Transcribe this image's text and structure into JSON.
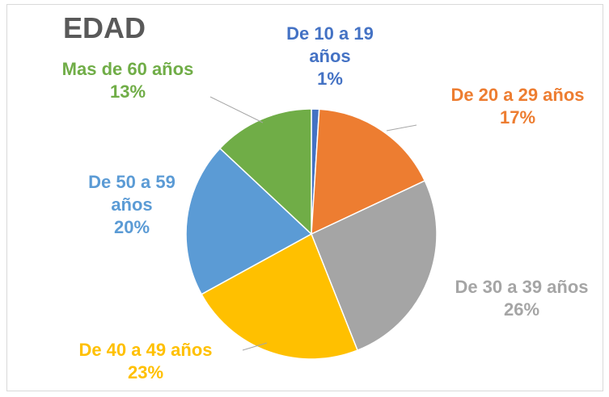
{
  "chart_data": {
    "type": "pie",
    "title": "EDAD",
    "categories": [
      "De 10 a 19 años",
      "De 20 a 29 años",
      "De 30 a 39 años",
      "De 40 a 49 años",
      "De 50 a 59 años",
      "Mas de 60 años"
    ],
    "values": [
      1,
      17,
      26,
      23,
      20,
      13
    ],
    "value_labels": [
      "1%",
      "17%",
      "26%",
      "23%",
      "20%",
      "13%"
    ],
    "colors": [
      "#4472c4",
      "#ed7d31",
      "#a5a5a5",
      "#ffc000",
      "#5b9bd5",
      "#70ad47"
    ]
  }
}
